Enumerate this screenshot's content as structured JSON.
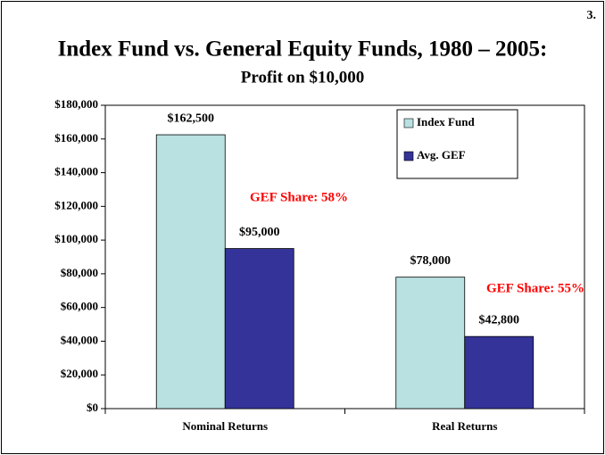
{
  "chart_data": {
    "type": "bar",
    "corner_note": "3.",
    "title": "Index Fund vs. General Equity Funds, 1980 – 2005:",
    "subtitle": "Profit on $10,000",
    "categories": [
      "Nominal Returns",
      "Real Returns"
    ],
    "series": [
      {
        "name": "Index Fund",
        "color": "#b9e1e1",
        "values": [
          162500,
          78000
        ],
        "value_labels": [
          "$162,500",
          "$78,000"
        ]
      },
      {
        "name": "Avg. GEF",
        "color": "#333399",
        "values": [
          95000,
          42800
        ],
        "value_labels": [
          "$95,000",
          "$42,800"
        ]
      }
    ],
    "annotations": [
      "GEF Share: 58%",
      "GEF Share: 55%"
    ],
    "annotation_color": "#ff0000",
    "ylim": [
      0,
      180000
    ],
    "yticks": [
      {
        "value": 0,
        "label": "$0"
      },
      {
        "value": 20000,
        "label": "$20,000"
      },
      {
        "value": 40000,
        "label": "$40,000"
      },
      {
        "value": 60000,
        "label": "$60,000"
      },
      {
        "value": 80000,
        "label": "$80,000"
      },
      {
        "value": 100000,
        "label": "$100,000"
      },
      {
        "value": 120000,
        "label": "$120,000"
      },
      {
        "value": 140000,
        "label": "$140,000"
      },
      {
        "value": 160000,
        "label": "$160,000"
      },
      {
        "value": 180000,
        "label": "$180,000"
      }
    ],
    "grid": false,
    "legend": "top-right"
  }
}
